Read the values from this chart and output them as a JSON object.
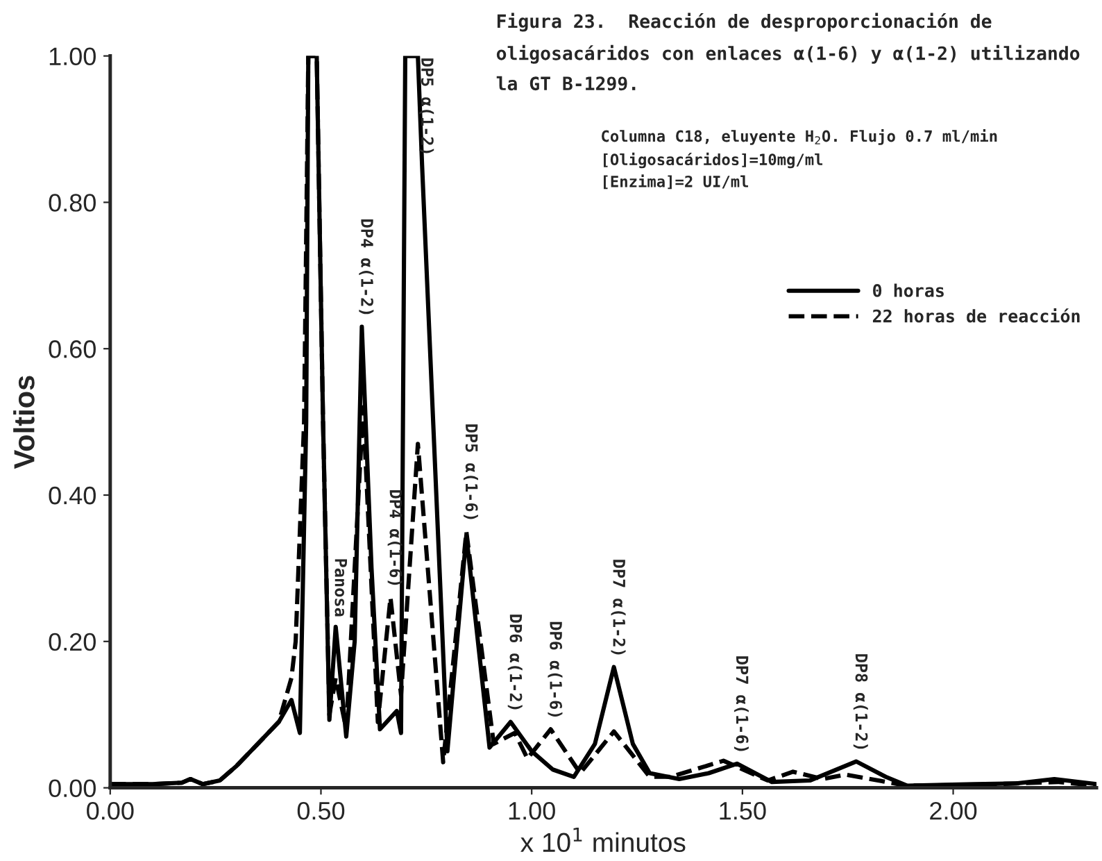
{
  "chart_data": {
    "type": "line",
    "title": "Figura 23.  Reacción de desproporcionación de oligosacáridos con enlaces α(1-6) y α(1-2) utilizando la GT B-1299.",
    "subtitle": "Columna C18, eluyente H$_{2}$O. Flujo 0.7 ml/min\n[Oligosacáridos]=10mg/ml\n[Enzima]=2 UI/ml",
    "xlabel": "x 10$^{1}$ minutos",
    "ylabel": "Voltios",
    "series": [
      {
        "name": "0 horas",
        "color": "#000000",
        "line_style": "solid",
        "x": [
          0.0,
          0.1,
          0.17,
          0.19,
          0.22,
          0.26,
          0.3,
          0.35,
          0.4,
          0.43,
          0.45,
          0.465,
          0.47,
          0.49,
          0.505,
          0.52,
          0.535,
          0.56,
          0.58,
          0.597,
          0.62,
          0.64,
          0.68,
          0.69,
          0.7,
          0.73,
          0.74,
          0.8,
          0.845,
          0.9,
          0.95,
          1.0,
          1.05,
          1.1,
          1.15,
          1.195,
          1.24,
          1.28,
          1.35,
          1.42,
          1.487,
          1.53,
          1.57,
          1.66,
          1.77,
          1.84,
          1.89,
          2.05,
          2.15,
          2.24,
          2.34
        ],
        "values": [
          0.005,
          0.005,
          0.007,
          0.012,
          0.005,
          0.01,
          0.03,
          0.06,
          0.09,
          0.12,
          0.075,
          0.5,
          1.0,
          1.0,
          0.5,
          0.093,
          0.22,
          0.07,
          0.2,
          0.63,
          0.3,
          0.08,
          0.105,
          0.075,
          1.0,
          1.0,
          0.85,
          0.05,
          0.345,
          0.055,
          0.09,
          0.05,
          0.025,
          0.015,
          0.06,
          0.165,
          0.06,
          0.02,
          0.012,
          0.02,
          0.033,
          0.02,
          0.008,
          0.01,
          0.036,
          0.015,
          0.003,
          0.005,
          0.006,
          0.012,
          0.005
        ]
      },
      {
        "name": "22 horas de reacción",
        "color": "#000000",
        "line_style": "dashed",
        "x": [
          0.0,
          0.1,
          0.17,
          0.19,
          0.22,
          0.26,
          0.3,
          0.35,
          0.4,
          0.43,
          0.44,
          0.46,
          0.47,
          0.49,
          0.505,
          0.52,
          0.535,
          0.56,
          0.6,
          0.635,
          0.665,
          0.69,
          0.73,
          0.79,
          0.845,
          0.91,
          0.96,
          0.99,
          1.045,
          1.115,
          1.195,
          1.28,
          1.33,
          1.455,
          1.56,
          1.62,
          1.69,
          1.745,
          1.89,
          2.05,
          2.25,
          2.34
        ],
        "values": [
          0.005,
          0.005,
          0.007,
          0.012,
          0.005,
          0.01,
          0.03,
          0.06,
          0.09,
          0.15,
          0.2,
          0.5,
          1.0,
          1.0,
          0.5,
          0.1,
          0.15,
          0.08,
          0.52,
          0.09,
          0.26,
          0.127,
          0.47,
          0.035,
          0.35,
          0.06,
          0.075,
          0.04,
          0.08,
          0.02,
          0.077,
          0.015,
          0.015,
          0.037,
          0.01,
          0.022,
          0.012,
          0.018,
          0.003,
          0.004,
          0.008,
          0.003
        ]
      }
    ],
    "annotations": [
      {
        "text": "DP5 α(1-2)",
        "x": 0.74,
        "y": 0.85
      },
      {
        "text": "DP4 α(1-2)",
        "x": 0.597,
        "y": 0.63
      },
      {
        "text": "Panosa",
        "x": 0.535,
        "y": 0.22
      },
      {
        "text": "DP4 α(1-6)",
        "x": 0.665,
        "y": 0.26
      },
      {
        "text": "DP5 α(1-6)",
        "x": 0.845,
        "y": 0.35
      },
      {
        "text": "DP6 α(1-2)",
        "x": 0.95,
        "y": 0.09
      },
      {
        "text": "DP6 α(1-6)",
        "x": 1.045,
        "y": 0.08
      },
      {
        "text": "DP7 α(1-2)",
        "x": 1.195,
        "y": 0.165
      },
      {
        "text": "DP7 α(1-6)",
        "x": 1.487,
        "y": 0.033
      },
      {
        "text": "DP8 α(1-2)",
        "x": 1.77,
        "y": 0.036
      }
    ],
    "xlim": [
      0,
      2.34
    ],
    "ylim": [
      0,
      1.0
    ],
    "xticks": [
      {
        "value": 0,
        "label": "0.00"
      },
      {
        "value": 0.5,
        "label": "0.50"
      },
      {
        "value": 1.0,
        "label": "1.00"
      },
      {
        "value": 1.5,
        "label": "1.50"
      },
      {
        "value": 2.0,
        "label": "2.00"
      }
    ],
    "yticks": [
      {
        "value": 0,
        "label": "0.00"
      },
      {
        "value": 0.2,
        "label": "0.20"
      },
      {
        "value": 0.4,
        "label": "0.40"
      },
      {
        "value": 0.6,
        "label": "0.60"
      },
      {
        "value": 0.8,
        "label": "0.80"
      },
      {
        "value": 1.0,
        "label": "1.00"
      }
    ],
    "legend": "right",
    "grid": false,
    "marker": "none"
  }
}
